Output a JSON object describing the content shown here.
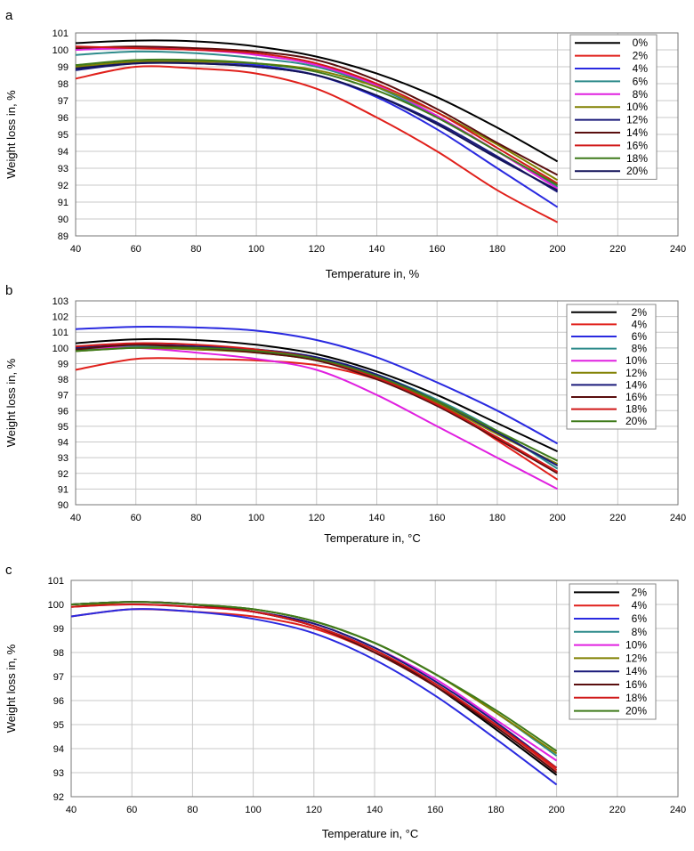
{
  "chart_data": [
    {
      "type": "line",
      "panel_label": "a",
      "xlabel": "Temperature in, %",
      "ylabel": "Weight loss in, %",
      "xlim": [
        40,
        240
      ],
      "ylim": [
        89,
        101
      ],
      "x_ticks": [
        40,
        60,
        80,
        100,
        120,
        140,
        160,
        180,
        200,
        220,
        240
      ],
      "y_ticks": [
        89,
        90,
        91,
        92,
        93,
        94,
        95,
        96,
        97,
        98,
        99,
        100,
        101
      ],
      "grid": true,
      "legend_position": "top-right",
      "series": [
        {
          "name": "0%",
          "color": "#000000",
          "x": [
            40,
            60,
            80,
            100,
            120,
            140,
            160,
            180,
            200
          ],
          "y": [
            100.4,
            100.55,
            100.5,
            100.2,
            99.6,
            98.6,
            97.2,
            95.4,
            93.4
          ]
        },
        {
          "name": "2%",
          "color": "#e0201b",
          "x": [
            40,
            60,
            80,
            100,
            120,
            140,
            160,
            180,
            200
          ],
          "y": [
            98.3,
            99.0,
            98.9,
            98.6,
            97.7,
            96.0,
            94.0,
            91.7,
            89.8
          ]
        },
        {
          "name": "4%",
          "color": "#2a2ae0",
          "x": [
            40,
            60,
            80,
            100,
            120,
            140,
            160,
            180,
            200
          ],
          "y": [
            99.0,
            99.3,
            99.3,
            99.1,
            98.5,
            97.2,
            95.3,
            93.0,
            90.7
          ]
        },
        {
          "name": "6%",
          "color": "#2e8b8b",
          "x": [
            40,
            60,
            80,
            100,
            120,
            140,
            160,
            180,
            200
          ],
          "y": [
            99.7,
            99.9,
            99.8,
            99.5,
            99.0,
            97.8,
            96.0,
            94.0,
            91.9
          ]
        },
        {
          "name": "8%",
          "color": "#e020e0",
          "x": [
            40,
            60,
            80,
            100,
            120,
            140,
            160,
            180,
            200
          ],
          "y": [
            100.0,
            100.1,
            100.0,
            99.7,
            99.1,
            97.9,
            96.1,
            94.0,
            91.8
          ]
        },
        {
          "name": "10%",
          "color": "#808000",
          "x": [
            40,
            60,
            80,
            100,
            120,
            140,
            160,
            180,
            200
          ],
          "y": [
            99.0,
            99.3,
            99.3,
            99.2,
            98.8,
            97.8,
            96.3,
            94.4,
            92.3
          ]
        },
        {
          "name": "12%",
          "color": "#1a1a7a",
          "x": [
            40,
            60,
            80,
            100,
            120,
            140,
            160,
            180,
            200
          ],
          "y": [
            98.8,
            99.2,
            99.2,
            99.0,
            98.5,
            97.3,
            95.7,
            93.7,
            91.6
          ]
        },
        {
          "name": "14%",
          "color": "#5a0e0e",
          "x": [
            40,
            60,
            80,
            100,
            120,
            140,
            160,
            180,
            200
          ],
          "y": [
            100.1,
            100.2,
            100.1,
            99.9,
            99.4,
            98.2,
            96.5,
            94.5,
            92.6
          ]
        },
        {
          "name": "16%",
          "color": "#d01818",
          "x": [
            40,
            60,
            80,
            100,
            120,
            140,
            160,
            180,
            200
          ],
          "y": [
            100.2,
            100.1,
            100.0,
            99.8,
            99.2,
            98.0,
            96.3,
            94.2,
            92.1
          ]
        },
        {
          "name": "18%",
          "color": "#3f7a1a",
          "x": [
            40,
            60,
            80,
            100,
            120,
            140,
            160,
            180,
            200
          ],
          "y": [
            99.1,
            99.4,
            99.4,
            99.2,
            98.7,
            97.6,
            96.0,
            94.0,
            92.0
          ]
        },
        {
          "name": "20%",
          "color": "#14145a",
          "x": [
            40,
            60,
            80,
            100,
            120,
            140,
            160,
            180,
            200
          ],
          "y": [
            98.9,
            99.2,
            99.2,
            99.0,
            98.5,
            97.3,
            95.6,
            93.6,
            91.7
          ]
        }
      ]
    },
    {
      "type": "line",
      "panel_label": "b",
      "xlabel": "Temperature in, °C",
      "ylabel": "Weight loss in, %",
      "xlim": [
        40,
        240
      ],
      "ylim": [
        90,
        103
      ],
      "x_ticks": [
        40,
        60,
        80,
        100,
        120,
        140,
        160,
        180,
        200,
        220,
        240
      ],
      "y_ticks": [
        90,
        91,
        92,
        93,
        94,
        95,
        96,
        97,
        98,
        99,
        100,
        101,
        102,
        103
      ],
      "grid": true,
      "legend_position": "top-right",
      "series": [
        {
          "name": "2%",
          "color": "#000000",
          "x": [
            40,
            60,
            80,
            100,
            120,
            140,
            160,
            180,
            200
          ],
          "y": [
            100.3,
            100.55,
            100.5,
            100.2,
            99.6,
            98.5,
            97.0,
            95.2,
            93.4
          ]
        },
        {
          "name": "4%",
          "color": "#e0201b",
          "x": [
            40,
            60,
            80,
            100,
            120,
            140,
            160,
            180,
            200
          ],
          "y": [
            98.6,
            99.3,
            99.3,
            99.2,
            98.9,
            98.0,
            96.5,
            94.1,
            91.6
          ]
        },
        {
          "name": "6%",
          "color": "#2a2ae0",
          "x": [
            40,
            60,
            80,
            100,
            120,
            140,
            160,
            180,
            200
          ],
          "y": [
            101.2,
            101.35,
            101.3,
            101.1,
            100.5,
            99.4,
            97.8,
            96.0,
            93.9
          ]
        },
        {
          "name": "8%",
          "color": "#2e8b8b",
          "x": [
            40,
            60,
            80,
            100,
            120,
            140,
            160,
            180,
            200
          ],
          "y": [
            99.9,
            100.1,
            100.0,
            99.9,
            99.4,
            98.3,
            96.7,
            94.7,
            92.3
          ]
        },
        {
          "name": "10%",
          "color": "#e020e0",
          "x": [
            40,
            60,
            80,
            100,
            120,
            140,
            160,
            180,
            200
          ],
          "y": [
            100.0,
            100.0,
            99.7,
            99.3,
            98.6,
            97.0,
            95.0,
            93.0,
            91.0
          ]
        },
        {
          "name": "12%",
          "color": "#808000",
          "x": [
            40,
            60,
            80,
            100,
            120,
            140,
            160,
            180,
            200
          ],
          "y": [
            99.8,
            100.0,
            99.9,
            99.7,
            99.2,
            98.1,
            96.5,
            94.5,
            92.6
          ]
        },
        {
          "name": "14%",
          "color": "#1a1a7a",
          "x": [
            40,
            60,
            80,
            100,
            120,
            140,
            160,
            180,
            200
          ],
          "y": [
            100.0,
            100.2,
            100.1,
            99.9,
            99.4,
            98.3,
            96.6,
            94.6,
            92.5
          ]
        },
        {
          "name": "16%",
          "color": "#5a0e0e",
          "x": [
            40,
            60,
            80,
            100,
            120,
            140,
            160,
            180,
            200
          ],
          "y": [
            99.9,
            100.2,
            100.0,
            99.7,
            99.2,
            98.0,
            96.3,
            94.2,
            92.0
          ]
        },
        {
          "name": "18%",
          "color": "#d01818",
          "x": [
            40,
            60,
            80,
            100,
            120,
            140,
            160,
            180,
            200
          ],
          "y": [
            100.1,
            100.3,
            100.2,
            99.9,
            99.3,
            98.1,
            96.4,
            94.3,
            92.1
          ]
        },
        {
          "name": "20%",
          "color": "#3f7a1a",
          "x": [
            40,
            60,
            80,
            100,
            120,
            140,
            160,
            180,
            200
          ],
          "y": [
            99.8,
            100.0,
            100.0,
            99.8,
            99.3,
            98.2,
            96.6,
            94.7,
            92.8
          ]
        }
      ]
    },
    {
      "type": "line",
      "panel_label": "c",
      "xlabel": "Temperature in, °C",
      "ylabel": "Weight loss in, %",
      "xlim": [
        40,
        240
      ],
      "ylim": [
        92,
        101
      ],
      "x_ticks": [
        40,
        60,
        80,
        100,
        120,
        140,
        160,
        180,
        200,
        220,
        240
      ],
      "y_ticks": [
        92,
        93,
        94,
        95,
        96,
        97,
        98,
        99,
        100,
        101
      ],
      "grid": true,
      "legend_position": "top-right",
      "series": [
        {
          "name": "2%",
          "color": "#000000",
          "x": [
            40,
            60,
            80,
            100,
            120,
            140,
            160,
            180,
            200
          ],
          "y": [
            100.0,
            100.1,
            100.0,
            99.7,
            99.1,
            98.1,
            96.6,
            94.8,
            92.9
          ]
        },
        {
          "name": "4%",
          "color": "#e0201b",
          "x": [
            40,
            60,
            80,
            100,
            120,
            140,
            160,
            180,
            200
          ],
          "y": [
            99.5,
            99.8,
            99.7,
            99.5,
            99.0,
            98.0,
            96.6,
            95.0,
            93.1
          ]
        },
        {
          "name": "6%",
          "color": "#2a2ae0",
          "x": [
            40,
            60,
            80,
            100,
            120,
            140,
            160,
            180,
            200
          ],
          "y": [
            99.5,
            99.8,
            99.7,
            99.4,
            98.8,
            97.7,
            96.2,
            94.4,
            92.5
          ]
        },
        {
          "name": "8%",
          "color": "#2e8b8b",
          "x": [
            40,
            60,
            80,
            100,
            120,
            140,
            160,
            180,
            200
          ],
          "y": [
            100.0,
            100.1,
            100.0,
            99.8,
            99.3,
            98.4,
            97.1,
            95.5,
            93.7
          ]
        },
        {
          "name": "10%",
          "color": "#e020e0",
          "x": [
            40,
            60,
            80,
            100,
            120,
            140,
            160,
            180,
            200
          ],
          "y": [
            99.9,
            100.0,
            99.9,
            99.7,
            99.2,
            98.2,
            96.9,
            95.2,
            93.5
          ]
        },
        {
          "name": "12%",
          "color": "#808000",
          "x": [
            40,
            60,
            80,
            100,
            120,
            140,
            160,
            180,
            200
          ],
          "y": [
            99.9,
            100.1,
            100.0,
            99.8,
            99.3,
            98.4,
            97.1,
            95.5,
            93.8
          ]
        },
        {
          "name": "14%",
          "color": "#1a1a7a",
          "x": [
            40,
            60,
            80,
            100,
            120,
            140,
            160,
            180,
            200
          ],
          "y": [
            100.0,
            100.1,
            100.0,
            99.7,
            99.2,
            98.2,
            96.8,
            95.1,
            93.2
          ]
        },
        {
          "name": "16%",
          "color": "#5a0e0e",
          "x": [
            40,
            60,
            80,
            100,
            120,
            140,
            160,
            180,
            200
          ],
          "y": [
            100.0,
            100.1,
            100.0,
            99.7,
            99.1,
            98.0,
            96.6,
            94.9,
            93.0
          ]
        },
        {
          "name": "18%",
          "color": "#d01818",
          "x": [
            40,
            60,
            80,
            100,
            120,
            140,
            160,
            180,
            200
          ],
          "y": [
            99.9,
            100.0,
            99.9,
            99.7,
            99.1,
            98.1,
            96.7,
            95.0,
            93.2
          ]
        },
        {
          "name": "20%",
          "color": "#3f7a1a",
          "x": [
            40,
            60,
            80,
            100,
            120,
            140,
            160,
            180,
            200
          ],
          "y": [
            100.0,
            100.1,
            100.0,
            99.8,
            99.3,
            98.4,
            97.1,
            95.6,
            93.9
          ]
        }
      ]
    }
  ]
}
